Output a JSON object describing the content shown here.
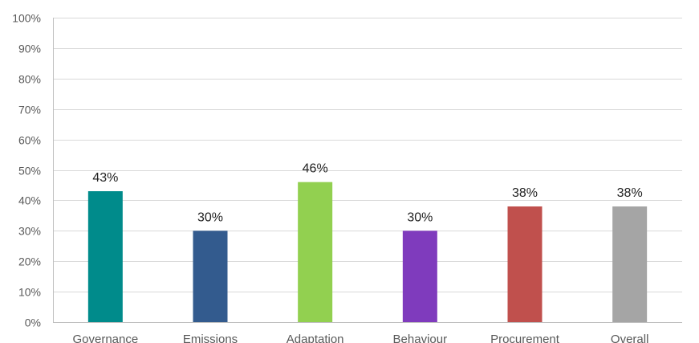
{
  "chart_data": {
    "type": "bar",
    "title": "",
    "xlabel": "",
    "ylabel": "",
    "categories": [
      "Governance",
      "Emissions",
      "Adaptation",
      "Behaviour",
      "Procurement",
      "Overall"
    ],
    "values": [
      43,
      30,
      46,
      30,
      38,
      38
    ],
    "data_labels": [
      "43%",
      "30%",
      "46%",
      "30%",
      "38%",
      "38%"
    ],
    "colors": [
      "#008b8b",
      "#335b8e",
      "#92d050",
      "#7f3bbd",
      "#c0504d",
      "#a5a5a5"
    ],
    "ylim": [
      0,
      100
    ],
    "yticks": [
      0,
      10,
      20,
      30,
      40,
      50,
      60,
      70,
      80,
      90,
      100
    ],
    "ytick_labels": [
      "0%",
      "10%",
      "20%",
      "30%",
      "40%",
      "50%",
      "60%",
      "70%",
      "80%",
      "90%",
      "100%"
    ],
    "grid": true,
    "legend": "none"
  }
}
